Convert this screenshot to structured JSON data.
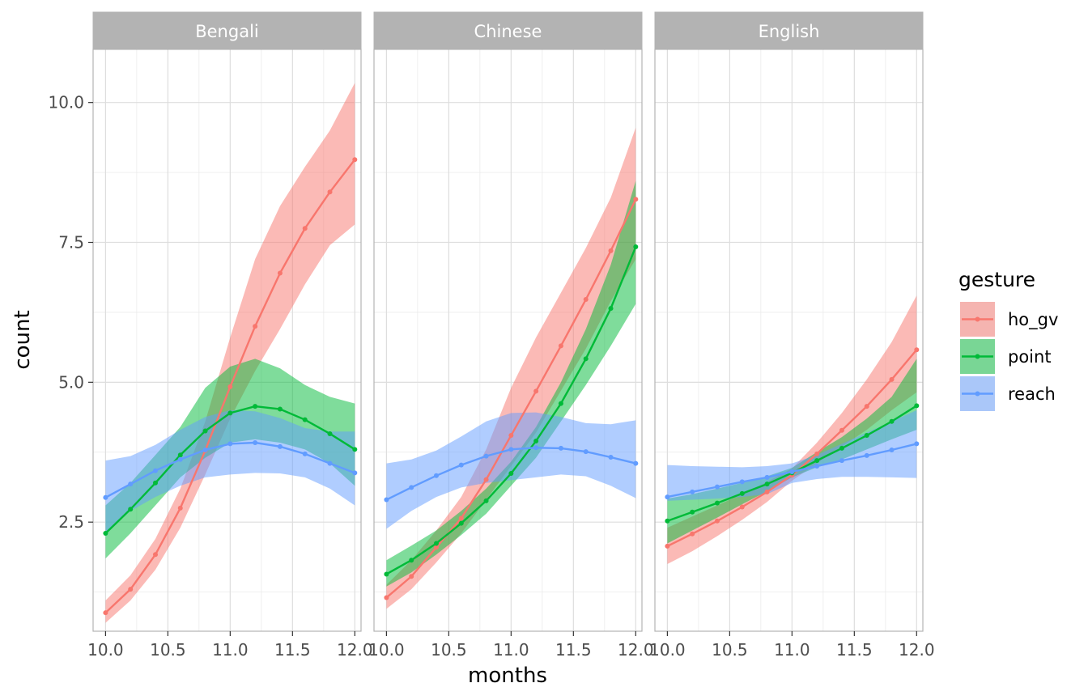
{
  "chart_data": {
    "type": "line",
    "xlabel": "months",
    "ylabel": "count",
    "xlim": [
      9.9,
      12.05
    ],
    "ylim": [
      0.55,
      10.95
    ],
    "x_ticks": [
      10.0,
      10.5,
      11.0,
      11.5,
      12.0
    ],
    "x_tick_labels": [
      "10.0",
      "10.5",
      "11.0",
      "11.5",
      "12.0"
    ],
    "y_ticks": [
      2.5,
      5.0,
      7.5,
      10.0
    ],
    "y_tick_labels": [
      "2.5",
      "5.0",
      "7.5",
      "10.0"
    ],
    "y_minor": [
      1.25,
      3.75,
      6.25,
      8.75
    ],
    "x_minor": [
      10.25,
      10.75,
      11.25,
      11.75
    ],
    "grid": true,
    "x": [
      10.0,
      10.2,
      10.4,
      10.6,
      10.8,
      11.0,
      11.2,
      11.4,
      11.6,
      11.8,
      12.0
    ],
    "legend": {
      "title": "gesture",
      "position": "right",
      "entries": [
        "ho_gv",
        "point",
        "reach"
      ]
    },
    "colors": {
      "ho_gv": "#F8766D",
      "point": "#00BA38",
      "reach": "#619CFF"
    },
    "panels": [
      {
        "label": "Bengali",
        "series": [
          {
            "name": "ho_gv",
            "values": [
              0.88,
              1.3,
              1.92,
              2.75,
              3.78,
              4.92,
              6.0,
              6.95,
              7.75,
              8.4,
              8.98
            ],
            "lower": [
              0.7,
              1.1,
              1.65,
              2.4,
              3.35,
              4.35,
              5.2,
              5.95,
              6.75,
              7.45,
              7.82
            ],
            "upper": [
              1.1,
              1.55,
              2.2,
              3.1,
              4.3,
              5.8,
              7.2,
              8.15,
              8.85,
              9.5,
              10.35
            ]
          },
          {
            "name": "point",
            "values": [
              2.3,
              2.73,
              3.2,
              3.7,
              4.13,
              4.45,
              4.57,
              4.52,
              4.33,
              4.08,
              3.8
            ],
            "lower": [
              1.85,
              2.3,
              2.8,
              3.3,
              3.65,
              3.92,
              3.98,
              3.92,
              3.8,
              3.55,
              3.15
            ],
            "upper": [
              2.8,
              3.2,
              3.7,
              4.2,
              4.9,
              5.28,
              5.42,
              5.25,
              4.95,
              4.74,
              4.62
            ]
          },
          {
            "name": "reach",
            "values": [
              2.94,
              3.18,
              3.42,
              3.62,
              3.79,
              3.9,
              3.92,
              3.85,
              3.72,
              3.55,
              3.38
            ],
            "lower": [
              2.3,
              2.7,
              2.95,
              3.15,
              3.3,
              3.35,
              3.38,
              3.37,
              3.3,
              3.1,
              2.8
            ],
            "upper": [
              3.6,
              3.68,
              3.88,
              4.15,
              4.38,
              4.5,
              4.48,
              4.36,
              4.18,
              4.12,
              4.12
            ]
          }
        ]
      },
      {
        "label": "Chinese",
        "series": [
          {
            "name": "ho_gv",
            "values": [
              1.15,
              1.53,
              2.05,
              2.57,
              3.26,
              4.05,
              4.84,
              5.65,
              6.48,
              7.35,
              8.27
            ],
            "lower": [
              0.95,
              1.3,
              1.78,
              2.3,
              2.9,
              3.5,
              4.1,
              4.85,
              5.6,
              6.45,
              7.2
            ],
            "upper": [
              1.38,
              1.82,
              2.35,
              2.95,
              3.8,
              4.9,
              5.8,
              6.6,
              7.4,
              8.3,
              9.55
            ]
          },
          {
            "name": "point",
            "values": [
              1.57,
              1.82,
              2.12,
              2.48,
              2.88,
              3.37,
              3.95,
              4.62,
              5.42,
              6.32,
              7.42
            ],
            "lower": [
              1.35,
              1.6,
              1.92,
              2.27,
              2.65,
              3.15,
              3.65,
              4.3,
              4.95,
              5.65,
              6.4
            ],
            "upper": [
              1.82,
              2.08,
              2.35,
              2.7,
              3.1,
              3.58,
              4.2,
              5.0,
              5.95,
              7.1,
              8.6
            ]
          },
          {
            "name": "reach",
            "values": [
              2.9,
              3.12,
              3.33,
              3.52,
              3.68,
              3.8,
              3.83,
              3.82,
              3.76,
              3.66,
              3.55
            ],
            "lower": [
              2.38,
              2.7,
              2.95,
              3.12,
              3.2,
              3.25,
              3.3,
              3.35,
              3.32,
              3.15,
              2.93
            ],
            "upper": [
              3.55,
              3.62,
              3.78,
              4.03,
              4.3,
              4.45,
              4.46,
              4.38,
              4.27,
              4.25,
              4.32
            ]
          }
        ]
      },
      {
        "label": "English",
        "series": [
          {
            "name": "ho_gv",
            "values": [
              2.07,
              2.29,
              2.52,
              2.77,
              3.04,
              3.34,
              3.72,
              4.14,
              4.57,
              5.05,
              5.58
            ],
            "lower": [
              1.75,
              1.98,
              2.25,
              2.54,
              2.86,
              3.24,
              3.55,
              3.85,
              4.15,
              4.5,
              4.82
            ],
            "upper": [
              2.4,
              2.6,
              2.8,
              3.0,
              3.22,
              3.46,
              3.92,
              4.45,
              5.05,
              5.72,
              6.55
            ]
          },
          {
            "name": "point",
            "values": [
              2.52,
              2.68,
              2.84,
              3.01,
              3.18,
              3.38,
              3.6,
              3.82,
              4.05,
              4.3,
              4.58
            ],
            "lower": [
              2.12,
              2.35,
              2.58,
              2.82,
              3.05,
              3.3,
              3.48,
              3.62,
              3.8,
              3.98,
              4.15
            ],
            "upper": [
              2.92,
              3.0,
              3.1,
              3.2,
              3.32,
              3.47,
              3.75,
              4.02,
              4.35,
              4.74,
              5.42
            ]
          },
          {
            "name": "reach",
            "values": [
              2.95,
              3.04,
              3.13,
              3.22,
              3.3,
              3.4,
              3.5,
              3.6,
              3.69,
              3.79,
              3.9
            ],
            "lower": [
              2.88,
              2.9,
              2.92,
              2.95,
              3.0,
              3.2,
              3.27,
              3.31,
              3.31,
              3.3,
              3.29
            ],
            "upper": [
              3.52,
              3.5,
              3.49,
              3.48,
              3.5,
              3.55,
              3.7,
              3.9,
              4.1,
              4.3,
              4.5
            ]
          }
        ]
      }
    ]
  }
}
